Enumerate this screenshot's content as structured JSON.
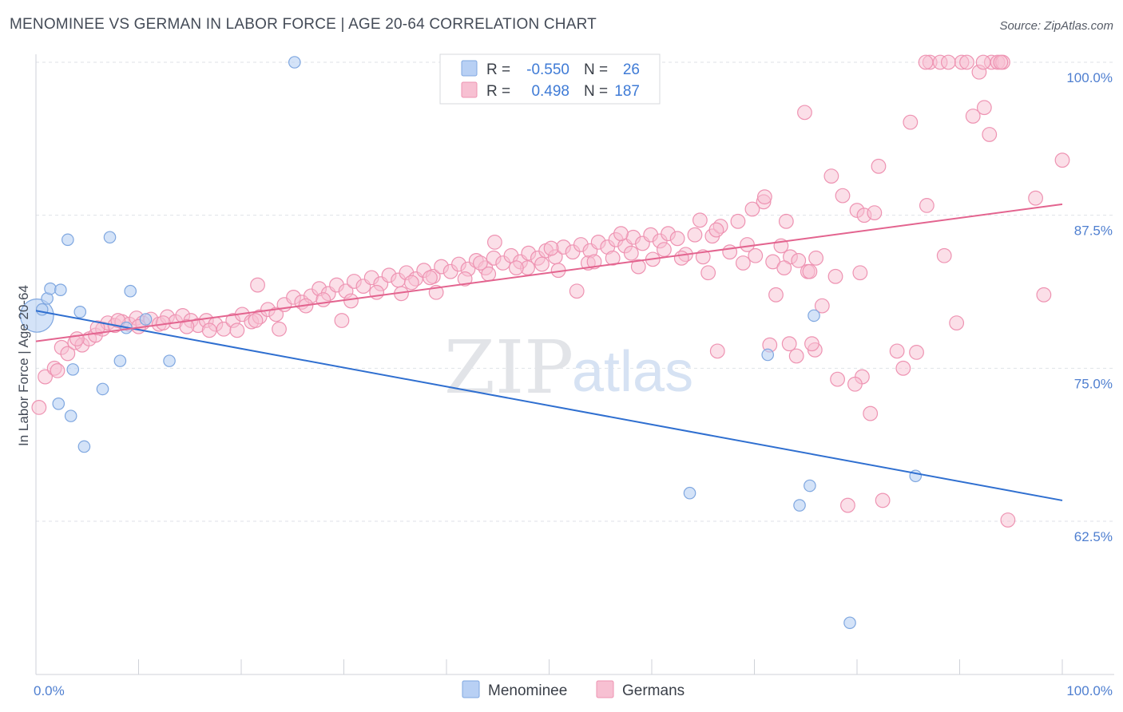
{
  "header": {
    "title": "MENOMINEE VS GERMAN IN LABOR FORCE | AGE 20-64 CORRELATION CHART",
    "source": "Source: ZipAtlas.com"
  },
  "watermark": {
    "zip": "ZIP",
    "atlas": "atlas"
  },
  "colors": {
    "menominee_fill": "#b8d0f4",
    "menominee_stroke": "#7fa7e0",
    "menominee_line": "#2f6fd0",
    "germans_fill": "#f7c0d2",
    "germans_stroke": "#ee93b2",
    "germans_line": "#e3648f"
  },
  "stats_box": {
    "rows": [
      {
        "r_label": "R =",
        "r_value": "-0.550",
        "n_label": "N =",
        "n_value": "26"
      },
      {
        "r_label": "R =",
        "r_value": "0.498",
        "n_label": "N =",
        "n_value": "187"
      }
    ]
  },
  "chart_data": {
    "type": "scatter",
    "ylabel": "In Labor Force | Age 20-64",
    "xlim": [
      0,
      100
    ],
    "ylim": [
      52,
      102
    ],
    "x_tick_labels": [
      "0.0%",
      "100.0%"
    ],
    "y_ticks": [
      62.5,
      75.0,
      87.5,
      100.0
    ],
    "y_tick_labels": [
      "62.5%",
      "75.0%",
      "87.5%",
      "100.0%"
    ],
    "grid": true,
    "legend_placement": "bottom-center",
    "series": [
      {
        "name": "Menominee",
        "trend": {
          "x0": 0,
          "y0": 79.7,
          "x1": 100,
          "y1": 64.2
        },
        "points": [
          [
            0.1,
            79.3,
            26
          ],
          [
            0.6,
            79.8,
            9
          ],
          [
            1.1,
            80.7,
            9
          ],
          [
            1.4,
            81.5,
            9
          ],
          [
            2.4,
            81.4,
            9
          ],
          [
            3.1,
            85.5,
            9
          ],
          [
            7.2,
            85.7,
            9
          ],
          [
            9.2,
            81.3,
            9
          ],
          [
            4.3,
            79.6,
            9
          ],
          [
            8.8,
            78.3,
            9
          ],
          [
            10.7,
            79.0,
            9
          ],
          [
            2.2,
            72.1,
            9
          ],
          [
            3.4,
            71.1,
            9
          ],
          [
            3.6,
            74.9,
            9
          ],
          [
            4.7,
            68.6,
            9
          ],
          [
            6.5,
            73.3,
            9
          ],
          [
            8.2,
            75.6,
            9
          ],
          [
            13.0,
            75.6,
            9
          ],
          [
            25.2,
            100.0,
            9
          ],
          [
            71.3,
            76.1,
            9
          ],
          [
            75.8,
            79.3,
            9
          ],
          [
            75.4,
            65.4,
            9
          ],
          [
            74.4,
            63.8,
            9
          ],
          [
            63.7,
            64.8,
            9
          ],
          [
            85.7,
            66.2,
            9
          ],
          [
            79.3,
            54.2,
            9
          ]
        ]
      },
      {
        "name": "Germans",
        "trend": {
          "x0": 0,
          "y0": 77.2,
          "x1": 100,
          "y1": 88.4
        },
        "points": [
          [
            0.3,
            71.8,
            11
          ],
          [
            0.9,
            74.3,
            11
          ],
          [
            1.8,
            75.0,
            11
          ],
          [
            2.5,
            76.7,
            11
          ],
          [
            3.1,
            76.2,
            11
          ],
          [
            3.8,
            77.1,
            11
          ],
          [
            4.5,
            76.9,
            11
          ],
          [
            5.2,
            77.4,
            11
          ],
          [
            5.8,
            77.7,
            11
          ],
          [
            6.5,
            78.2,
            11
          ],
          [
            7.0,
            78.7,
            11
          ],
          [
            7.7,
            78.5,
            11
          ],
          [
            8.4,
            78.8,
            11
          ],
          [
            9.1,
            78.6,
            11
          ],
          [
            9.8,
            79.1,
            11
          ],
          [
            10.4,
            78.7,
            11
          ],
          [
            11.2,
            79.0,
            11
          ],
          [
            12.0,
            78.6,
            11
          ],
          [
            12.8,
            79.2,
            11
          ],
          [
            13.6,
            78.8,
            11
          ],
          [
            14.3,
            79.3,
            11
          ],
          [
            15.1,
            78.9,
            11
          ],
          [
            15.8,
            78.5,
            11
          ],
          [
            16.6,
            78.9,
            11
          ],
          [
            17.5,
            78.6,
            11
          ],
          [
            18.3,
            78.2,
            11
          ],
          [
            19.2,
            78.9,
            11
          ],
          [
            20.1,
            79.4,
            11
          ],
          [
            21.0,
            78.8,
            11
          ],
          [
            21.8,
            79.2,
            11
          ],
          [
            22.6,
            79.8,
            11
          ],
          [
            23.4,
            79.4,
            11
          ],
          [
            24.2,
            80.2,
            11
          ],
          [
            25.1,
            80.8,
            11
          ],
          [
            25.9,
            80.4,
            11
          ],
          [
            26.8,
            80.9,
            11
          ],
          [
            27.6,
            81.5,
            11
          ],
          [
            28.5,
            81.1,
            11
          ],
          [
            29.3,
            81.8,
            11
          ],
          [
            30.2,
            81.3,
            11
          ],
          [
            31.0,
            82.1,
            11
          ],
          [
            31.9,
            81.7,
            11
          ],
          [
            32.7,
            82.4,
            11
          ],
          [
            33.6,
            81.9,
            11
          ],
          [
            34.4,
            82.6,
            11
          ],
          [
            35.3,
            82.2,
            11
          ],
          [
            36.1,
            82.8,
            11
          ],
          [
            37.0,
            82.3,
            11
          ],
          [
            37.8,
            83.0,
            11
          ],
          [
            38.7,
            82.5,
            11
          ],
          [
            39.5,
            83.3,
            11
          ],
          [
            40.4,
            82.9,
            11
          ],
          [
            41.2,
            83.5,
            11
          ],
          [
            42.1,
            83.1,
            11
          ],
          [
            42.9,
            83.8,
            11
          ],
          [
            43.8,
            83.2,
            11
          ],
          [
            44.6,
            84.0,
            11
          ],
          [
            45.5,
            83.6,
            11
          ],
          [
            46.3,
            84.2,
            11
          ],
          [
            47.2,
            83.7,
            11
          ],
          [
            48.0,
            84.4,
            11
          ],
          [
            48.9,
            84.0,
            11
          ],
          [
            49.7,
            84.6,
            11
          ],
          [
            50.6,
            84.1,
            11
          ],
          [
            51.4,
            84.9,
            11
          ],
          [
            52.3,
            84.5,
            11
          ],
          [
            53.1,
            85.1,
            11
          ],
          [
            54.0,
            84.6,
            11
          ],
          [
            54.8,
            85.3,
            11
          ],
          [
            55.7,
            84.9,
            11
          ],
          [
            56.5,
            85.5,
            11
          ],
          [
            57.4,
            85.0,
            11
          ],
          [
            58.2,
            85.7,
            11
          ],
          [
            59.1,
            85.2,
            11
          ],
          [
            59.9,
            85.9,
            11
          ],
          [
            60.8,
            85.4,
            11
          ],
          [
            61.6,
            86.0,
            11
          ],
          [
            62.5,
            85.6,
            11
          ],
          [
            63.3,
            84.3,
            11
          ],
          [
            64.2,
            85.9,
            11
          ],
          [
            65.0,
            84.1,
            11
          ],
          [
            65.9,
            85.8,
            11
          ],
          [
            66.7,
            86.6,
            11
          ],
          [
            67.6,
            84.5,
            11
          ],
          [
            68.4,
            87.0,
            11
          ],
          [
            69.3,
            85.1,
            11
          ],
          [
            70.1,
            84.2,
            11
          ],
          [
            70.9,
            88.6,
            11
          ],
          [
            71.8,
            83.7,
            11
          ],
          [
            72.6,
            85.0,
            11
          ],
          [
            73.5,
            84.1,
            11
          ],
          [
            74.3,
            83.8,
            11
          ],
          [
            75.2,
            82.9,
            11
          ],
          [
            76.0,
            84.0,
            11
          ],
          [
            21.6,
            81.8,
            11
          ],
          [
            23.7,
            78.2,
            11
          ],
          [
            29.8,
            78.9,
            11
          ],
          [
            35.6,
            81.1,
            11
          ],
          [
            39.0,
            81.2,
            11
          ],
          [
            41.8,
            82.3,
            11
          ],
          [
            44.1,
            82.7,
            11
          ],
          [
            47.9,
            83.2,
            11
          ],
          [
            50.9,
            83.0,
            11
          ],
          [
            53.8,
            83.6,
            11
          ],
          [
            56.2,
            84.0,
            11
          ],
          [
            58.7,
            83.3,
            11
          ],
          [
            61.2,
            84.7,
            11
          ],
          [
            65.5,
            82.8,
            11
          ],
          [
            68.9,
            83.6,
            11
          ],
          [
            72.1,
            81.0,
            11
          ],
          [
            44.7,
            85.3,
            11
          ],
          [
            50.2,
            84.8,
            11
          ],
          [
            52.7,
            81.3,
            11
          ],
          [
            57.0,
            86.0,
            11
          ],
          [
            60.1,
            83.9,
            11
          ],
          [
            64.7,
            87.1,
            11
          ],
          [
            66.3,
            86.3,
            11
          ],
          [
            69.8,
            88.0,
            11
          ],
          [
            71.0,
            89.0,
            11
          ],
          [
            73.1,
            87.0,
            11
          ],
          [
            74.9,
            95.9,
            11
          ],
          [
            77.5,
            90.7,
            11
          ],
          [
            78.6,
            89.1,
            11
          ],
          [
            80.0,
            87.9,
            11
          ],
          [
            80.7,
            87.5,
            11
          ],
          [
            82.1,
            91.5,
            11
          ],
          [
            85.2,
            95.1,
            11
          ],
          [
            86.8,
            88.3,
            11
          ],
          [
            87.1,
            100.0,
            11
          ],
          [
            86.7,
            100.0,
            11
          ],
          [
            88.1,
            100.0,
            11
          ],
          [
            90.2,
            100.0,
            11
          ],
          [
            90.7,
            100.0,
            11
          ],
          [
            93.1,
            100.0,
            11
          ],
          [
            93.7,
            100.0,
            11
          ],
          [
            94.2,
            100.0,
            11
          ],
          [
            91.9,
            99.2,
            11
          ],
          [
            92.4,
            96.3,
            11
          ],
          [
            91.3,
            95.6,
            11
          ],
          [
            92.9,
            94.1,
            11
          ],
          [
            97.4,
            88.9,
            11
          ],
          [
            100.0,
            92.0,
            11
          ],
          [
            98.2,
            81.0,
            11
          ],
          [
            88.5,
            84.2,
            11
          ],
          [
            89.7,
            78.7,
            11
          ],
          [
            83.9,
            76.4,
            11
          ],
          [
            84.5,
            75.0,
            11
          ],
          [
            81.3,
            71.3,
            11
          ],
          [
            80.5,
            74.3,
            11
          ],
          [
            79.8,
            73.7,
            11
          ],
          [
            78.1,
            74.1,
            11
          ],
          [
            75.4,
            82.9,
            11
          ],
          [
            76.6,
            80.1,
            11
          ],
          [
            77.9,
            82.5,
            11
          ],
          [
            75.9,
            76.5,
            11
          ],
          [
            74.1,
            76.0,
            11
          ],
          [
            73.4,
            77.0,
            11
          ],
          [
            71.5,
            76.9,
            11
          ],
          [
            66.4,
            76.4,
            11
          ],
          [
            72.9,
            83.2,
            11
          ],
          [
            80.3,
            82.8,
            11
          ],
          [
            81.7,
            87.7,
            11
          ],
          [
            79.1,
            63.8,
            11
          ],
          [
            82.5,
            64.2,
            11
          ],
          [
            94.7,
            62.6,
            11
          ],
          [
            75.6,
            77.0,
            11
          ],
          [
            85.8,
            76.3,
            11
          ],
          [
            88.9,
            100.0,
            11
          ],
          [
            94.0,
            100.0,
            11
          ],
          [
            92.3,
            100.0,
            11
          ],
          [
            2.1,
            74.8,
            11
          ],
          [
            4.0,
            77.4,
            11
          ],
          [
            6.0,
            78.3,
            11
          ],
          [
            8.0,
            78.9,
            11
          ],
          [
            10.0,
            78.4,
            11
          ],
          [
            12.4,
            78.7,
            11
          ],
          [
            14.7,
            78.4,
            11
          ],
          [
            16.9,
            78.1,
            11
          ],
          [
            19.6,
            78.1,
            11
          ],
          [
            21.4,
            78.9,
            11
          ],
          [
            26.3,
            80.1,
            11
          ],
          [
            28.0,
            80.6,
            11
          ],
          [
            30.7,
            80.5,
            11
          ],
          [
            33.2,
            81.2,
            11
          ],
          [
            36.6,
            82.0,
            11
          ],
          [
            38.4,
            82.4,
            11
          ],
          [
            43.3,
            83.6,
            11
          ],
          [
            46.8,
            83.2,
            11
          ],
          [
            49.3,
            83.5,
            11
          ],
          [
            54.4,
            83.7,
            11
          ],
          [
            58.0,
            84.4,
            11
          ],
          [
            62.9,
            84.0,
            11
          ]
        ]
      }
    ]
  },
  "legend": {
    "items": [
      "Menominee",
      "Germans"
    ]
  }
}
